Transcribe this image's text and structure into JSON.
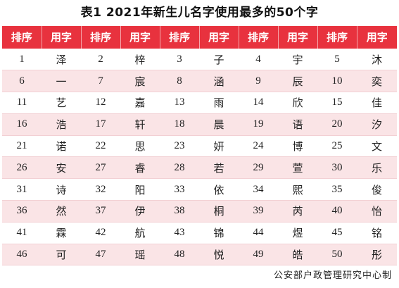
{
  "title": "表1  2021年新生儿名字使用最多的50个字",
  "header": {
    "rank_label": "排序",
    "char_label": "用字"
  },
  "colors": {
    "header_bg": "#e8323e",
    "header_text": "#ffffff",
    "row_even_bg": "#fae4e6",
    "row_odd_bg": "#ffffff"
  },
  "rows": [
    [
      {
        "rank": "1",
        "char": "泽"
      },
      {
        "rank": "2",
        "char": "梓"
      },
      {
        "rank": "3",
        "char": "子"
      },
      {
        "rank": "4",
        "char": "宇"
      },
      {
        "rank": "5",
        "char": "沐"
      }
    ],
    [
      {
        "rank": "6",
        "char": "一"
      },
      {
        "rank": "7",
        "char": "宸"
      },
      {
        "rank": "8",
        "char": "涵"
      },
      {
        "rank": "9",
        "char": "辰"
      },
      {
        "rank": "10",
        "char": "奕"
      }
    ],
    [
      {
        "rank": "11",
        "char": "艺"
      },
      {
        "rank": "12",
        "char": "嘉"
      },
      {
        "rank": "13",
        "char": "雨"
      },
      {
        "rank": "14",
        "char": "欣"
      },
      {
        "rank": "15",
        "char": "佳"
      }
    ],
    [
      {
        "rank": "16",
        "char": "浩"
      },
      {
        "rank": "17",
        "char": "轩"
      },
      {
        "rank": "18",
        "char": "晨"
      },
      {
        "rank": "19",
        "char": "语"
      },
      {
        "rank": "20",
        "char": "汐"
      }
    ],
    [
      {
        "rank": "21",
        "char": "诺"
      },
      {
        "rank": "22",
        "char": "思"
      },
      {
        "rank": "23",
        "char": "妍"
      },
      {
        "rank": "24",
        "char": "博"
      },
      {
        "rank": "25",
        "char": "文"
      }
    ],
    [
      {
        "rank": "26",
        "char": "安"
      },
      {
        "rank": "27",
        "char": "睿"
      },
      {
        "rank": "28",
        "char": "若"
      },
      {
        "rank": "29",
        "char": "萱"
      },
      {
        "rank": "30",
        "char": "乐"
      }
    ],
    [
      {
        "rank": "31",
        "char": "诗"
      },
      {
        "rank": "32",
        "char": "阳"
      },
      {
        "rank": "33",
        "char": "依"
      },
      {
        "rank": "34",
        "char": "熙"
      },
      {
        "rank": "35",
        "char": "俊"
      }
    ],
    [
      {
        "rank": "36",
        "char": "然"
      },
      {
        "rank": "37",
        "char": "伊"
      },
      {
        "rank": "38",
        "char": "桐"
      },
      {
        "rank": "39",
        "char": "芮"
      },
      {
        "rank": "40",
        "char": "怡"
      }
    ],
    [
      {
        "rank": "41",
        "char": "霖"
      },
      {
        "rank": "42",
        "char": "航"
      },
      {
        "rank": "43",
        "char": "锦"
      },
      {
        "rank": "44",
        "char": "煜"
      },
      {
        "rank": "45",
        "char": "铭"
      }
    ],
    [
      {
        "rank": "46",
        "char": "可"
      },
      {
        "rank": "47",
        "char": "瑶"
      },
      {
        "rank": "48",
        "char": "悦"
      },
      {
        "rank": "49",
        "char": "皓"
      },
      {
        "rank": "50",
        "char": "彤"
      }
    ]
  ],
  "footer": "公安部户政管理研究中心制"
}
